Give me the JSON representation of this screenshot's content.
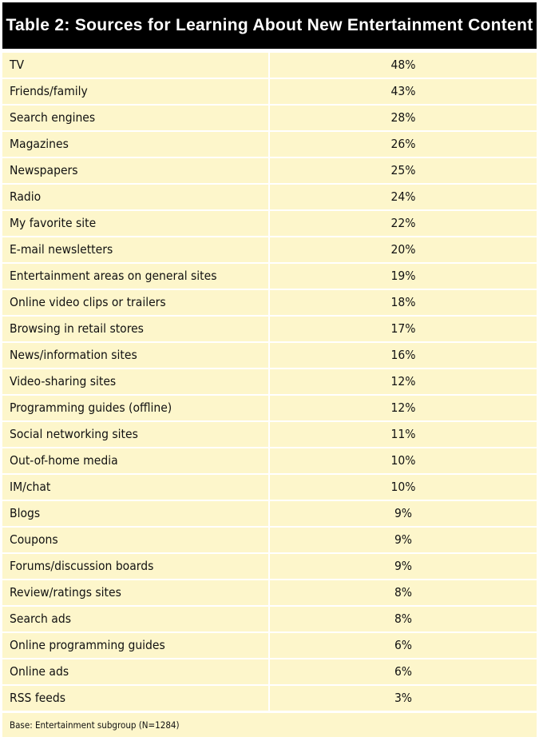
{
  "chart_data": {
    "type": "table",
    "title": "Table 2: Sources for Learning About New Entertainment Content",
    "rows": [
      {
        "label": "TV",
        "value": "48%"
      },
      {
        "label": "Friends/family",
        "value": "43%"
      },
      {
        "label": "Search engines",
        "value": "28%"
      },
      {
        "label": "Magazines",
        "value": "26%"
      },
      {
        "label": "Newspapers",
        "value": "25%"
      },
      {
        "label": "Radio",
        "value": "24%"
      },
      {
        "label": "My favorite site",
        "value": "22%"
      },
      {
        "label": "E-mail newsletters",
        "value": "20%"
      },
      {
        "label": "Entertainment areas on general sites",
        "value": "19%"
      },
      {
        "label": "Online video clips or trailers",
        "value": "18%"
      },
      {
        "label": "Browsing in retail stores",
        "value": "17%"
      },
      {
        "label": "News/information sites",
        "value": "16%"
      },
      {
        "label": "Video-sharing sites",
        "value": "12%"
      },
      {
        "label": "Programming guides (offline)",
        "value": "12%"
      },
      {
        "label": "Social networking sites",
        "value": "11%"
      },
      {
        "label": "Out-of-home media",
        "value": "10%"
      },
      {
        "label": "IM/chat",
        "value": "10%"
      },
      {
        "label": "Blogs",
        "value": "9%"
      },
      {
        "label": "Coupons",
        "value": "9%"
      },
      {
        "label": "Forums/discussion boards",
        "value": "9%"
      },
      {
        "label": "Review/ratings sites",
        "value": "8%"
      },
      {
        "label": "Search ads",
        "value": "8%"
      },
      {
        "label": "Online programming guides",
        "value": "6%"
      },
      {
        "label": "Online ads",
        "value": "6%"
      },
      {
        "label": "RSS feeds",
        "value": "3%"
      }
    ],
    "footnote": "Base: Entertainment subgroup (N=1284)",
    "colors": {
      "header_bg": "#000000",
      "header_text": "#ffffff",
      "cell_bg": "#fdf6cb"
    }
  }
}
